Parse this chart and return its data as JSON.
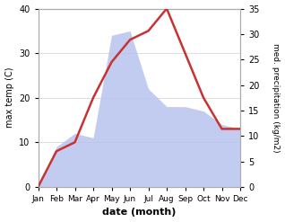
{
  "months": [
    "Jan",
    "Feb",
    "Mar",
    "Apr",
    "May",
    "Jun",
    "Jul",
    "Aug",
    "Sep",
    "Oct",
    "Nov",
    "Dec"
  ],
  "temperature": [
    0,
    8,
    10,
    20,
    28,
    33,
    35,
    40,
    30,
    20,
    13,
    13
  ],
  "precipitation": [
    0,
    9,
    12,
    11,
    34,
    35,
    22,
    18,
    18,
    17,
    14,
    13
  ],
  "temp_color": "#c83232",
  "precip_fill_color": "#b8c4ee",
  "precip_fill_alpha": 0.85,
  "temp_ylim": [
    0,
    40
  ],
  "precip_ylim": [
    0,
    35
  ],
  "temp_yticks": [
    0,
    10,
    20,
    30,
    40
  ],
  "precip_yticks": [
    0,
    5,
    10,
    15,
    20,
    25,
    30,
    35
  ],
  "xlabel": "date (month)",
  "ylabel_left": "max temp (C)",
  "ylabel_right": "med. precipitation (kg/m2)",
  "bg_color": "#ffffff",
  "grid_color": "#d0d0d0",
  "spine_color": "#aaaaaa"
}
